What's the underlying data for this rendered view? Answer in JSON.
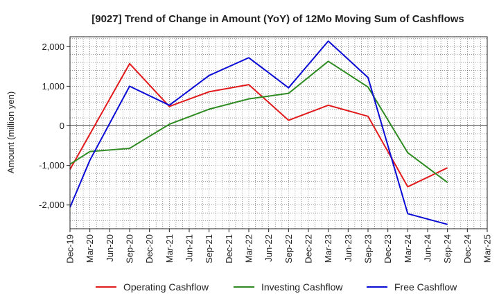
{
  "chart_data": {
    "type": "line",
    "title": "[9027]  Trend of Change in Amount (YoY) of 12Mo Moving Sum of Cashflows",
    "xlabel": "",
    "ylabel": "Amount (million yen)",
    "ylim": [
      -2600,
      2250
    ],
    "yticks": [
      -2000,
      -1000,
      0,
      1000,
      2000
    ],
    "ytick_labels": [
      "-2,000",
      "-1,000",
      "0",
      "1,000",
      "2,000"
    ],
    "grid": true,
    "legend_position": "bottom",
    "categories": [
      "Dec-19",
      "Mar-20",
      "Jun-20",
      "Sep-20",
      "Dec-20",
      "Mar-21",
      "Jun-21",
      "Sep-21",
      "Dec-21",
      "Mar-22",
      "Jun-22",
      "Sep-22",
      "Dec-22",
      "Mar-23",
      "Jun-23",
      "Sep-23",
      "Dec-23",
      "Mar-24",
      "Jun-24",
      "Sep-24",
      "Dec-24",
      "Mar-25"
    ],
    "series": [
      {
        "name": "Operating Cashflow",
        "color": "#e31a1c",
        "values": [
          -1100,
          null,
          null,
          1570,
          null,
          490,
          null,
          860,
          null,
          1040,
          null,
          140,
          null,
          520,
          null,
          240,
          null,
          -1540,
          null,
          -1060,
          null,
          null
        ]
      },
      {
        "name": "Investing Cashflow",
        "color": "#2e8b22",
        "values": [
          -970,
          -650,
          null,
          -570,
          null,
          40,
          null,
          420,
          null,
          680,
          null,
          820,
          null,
          1630,
          null,
          980,
          null,
          -680,
          null,
          -1430,
          null,
          null
        ]
      },
      {
        "name": "Free Cashflow",
        "color": "#0b0bd6",
        "values": [
          -2060,
          -870,
          null,
          1000,
          null,
          520,
          null,
          1270,
          null,
          1720,
          null,
          960,
          null,
          2140,
          null,
          1220,
          null,
          -2220,
          null,
          -2490,
          null,
          null
        ]
      }
    ]
  }
}
